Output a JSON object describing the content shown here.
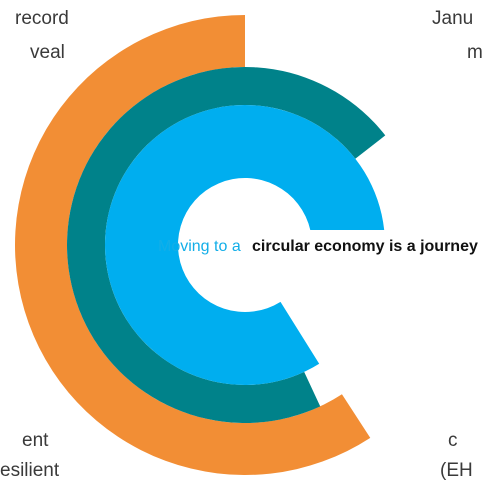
{
  "corner_texts": {
    "top_left": [
      "record",
      "veal"
    ],
    "top_right": [
      "Janu",
      "m"
    ],
    "bottom_left": [
      "ent",
      "esilient"
    ],
    "bottom_right": [
      "c",
      "(EH"
    ]
  },
  "center": {
    "lead": "Moving to a",
    "emphasis": "circular economy is a journey"
  }
}
